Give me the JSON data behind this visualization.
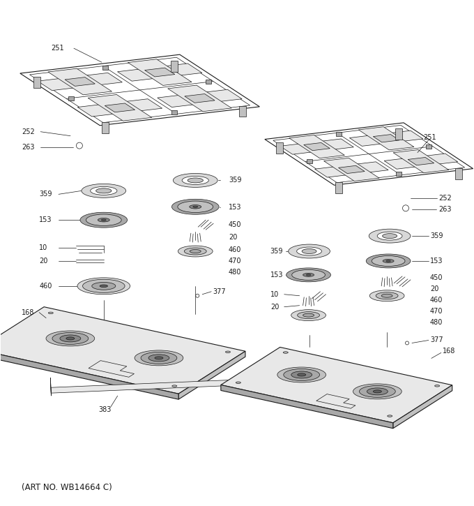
{
  "art_no": "(ART NO. WB14664 C)",
  "bg": "#ffffff",
  "lc": "#1a1a1a",
  "figsize": [
    6.8,
    7.25
  ],
  "dpi": 100,
  "fs": 7.0
}
